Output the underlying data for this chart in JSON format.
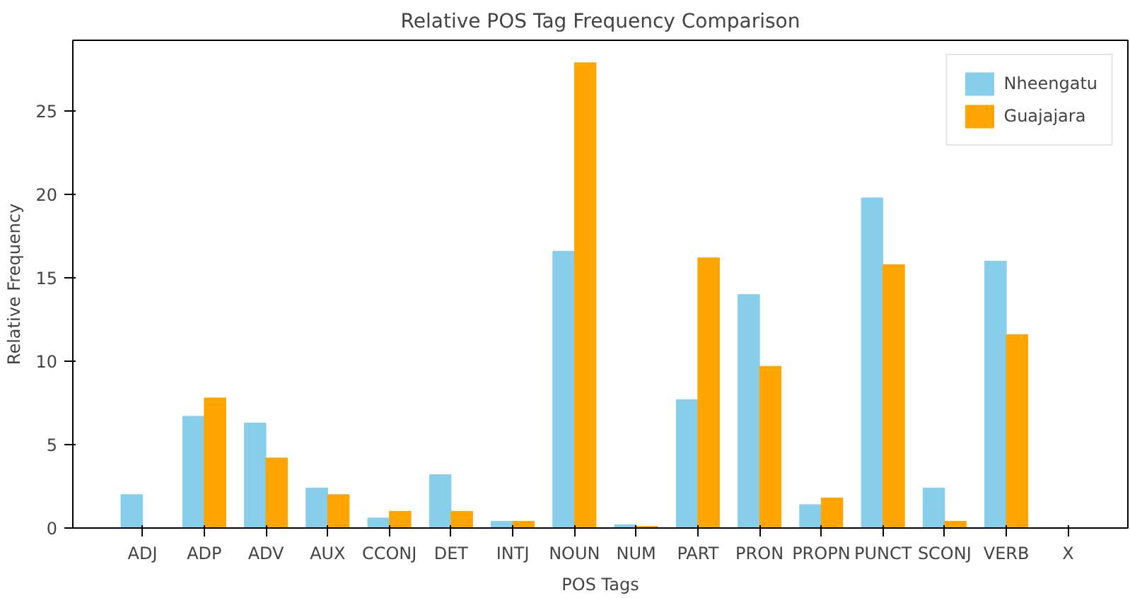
{
  "chart_data": {
    "type": "bar",
    "title": "Relative POS Tag Frequency Comparison",
    "xlabel": "POS Tags",
    "ylabel": "Relative Frequency",
    "categories": [
      "ADJ",
      "ADP",
      "ADV",
      "AUX",
      "CCONJ",
      "DET",
      "INTJ",
      "NOUN",
      "NUM",
      "PART",
      "PRON",
      "PROPN",
      "PUNCT",
      "SCONJ",
      "VERB",
      "X"
    ],
    "series": [
      {
        "name": "Nheengatu",
        "color": "#87ceeb",
        "values": [
          2.0,
          6.7,
          6.3,
          2.4,
          0.6,
          3.2,
          0.4,
          16.6,
          0.2,
          7.7,
          14.0,
          1.4,
          19.8,
          2.4,
          16.0,
          0
        ]
      },
      {
        "name": "Guajajara",
        "color": "#ffa500",
        "values": [
          0,
          7.8,
          4.2,
          2.0,
          1.0,
          1.0,
          0.4,
          27.9,
          0.1,
          16.2,
          9.7,
          1.8,
          15.8,
          0.4,
          11.6,
          0
        ]
      }
    ],
    "ylim": [
      0,
      29.25
    ],
    "yticks": [
      0,
      5,
      10,
      15,
      20,
      25
    ],
    "grid": false,
    "legend": "top right"
  }
}
